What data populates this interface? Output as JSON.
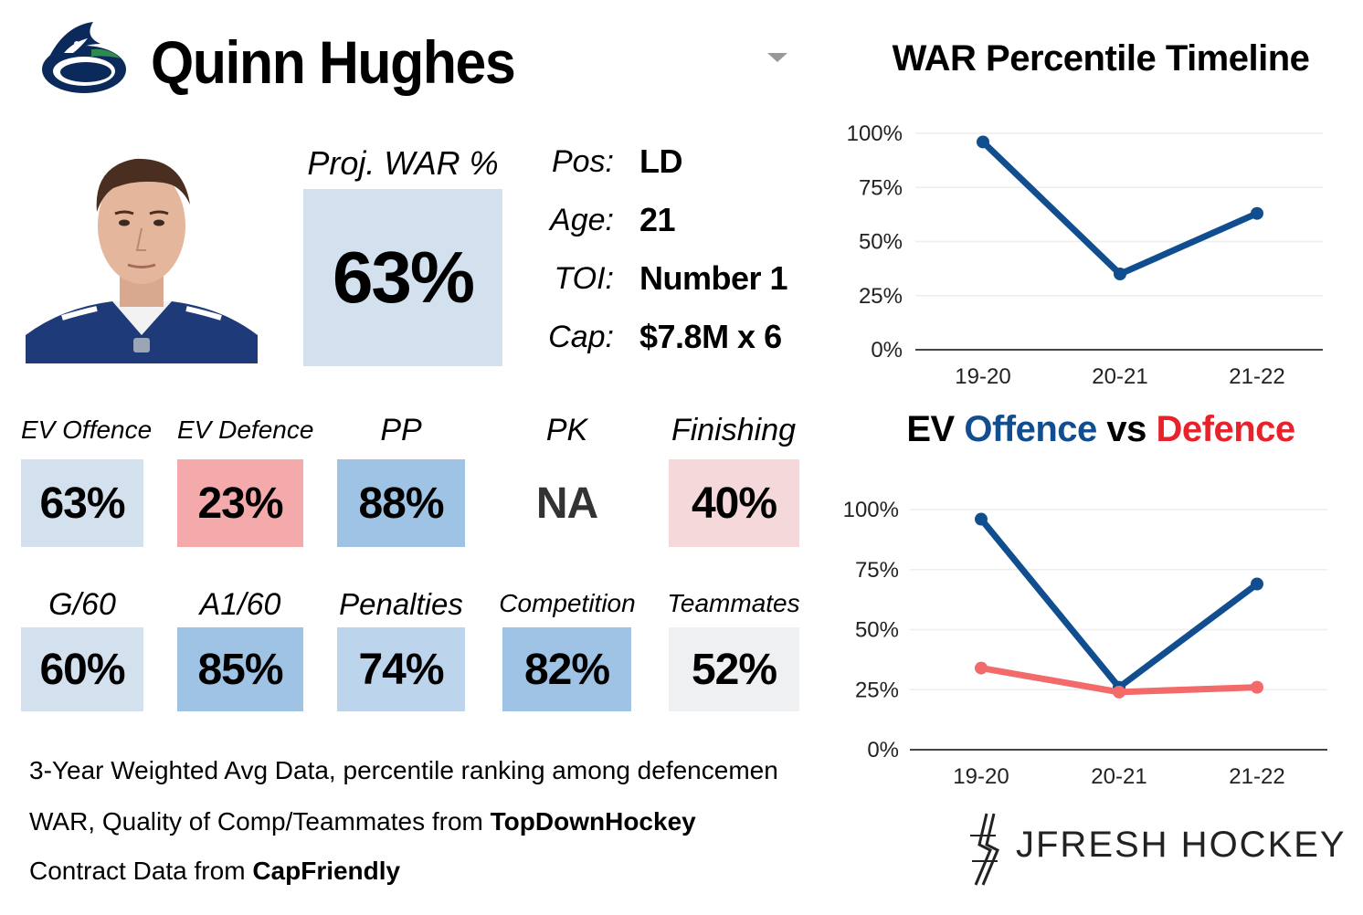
{
  "player": {
    "name": "Quinn Hughes",
    "team_logo_icon": "canucks-orca-logo-icon",
    "headshot": "player-headshot"
  },
  "projection": {
    "label": "Proj. WAR %",
    "value": "63%",
    "color": "#d3e1ee"
  },
  "info": [
    {
      "label": "Pos:",
      "value": "LD"
    },
    {
      "label": "Age:",
      "value": "21"
    },
    {
      "label": "TOI:",
      "value": "Number 1"
    },
    {
      "label": "Cap:",
      "value": "$7.8M x 6"
    }
  ],
  "stats_row1": [
    {
      "label": "EV Offence",
      "value": "63%",
      "color": "#d3e1ee"
    },
    {
      "label": "EV Defence",
      "value": "23%",
      "color": "#f4aaaa"
    },
    {
      "label": "PP",
      "value": "88%",
      "color": "#9ec3e4"
    },
    {
      "label": "PK",
      "value": "NA",
      "color": "#ffffff"
    },
    {
      "label": "Finishing",
      "value": "40%",
      "color": "#f4d8da"
    }
  ],
  "stats_row2": [
    {
      "label": "G/60",
      "value": "60%",
      "color": "#d3e1ee"
    },
    {
      "label": "A1/60",
      "value": "85%",
      "color": "#9ec3e4"
    },
    {
      "label": "Penalties",
      "value": "74%",
      "color": "#bcd5ec"
    },
    {
      "label": "Competition",
      "value": "82%",
      "color": "#9ec3e4"
    },
    {
      "label": "Teammates",
      "value": "52%",
      "color": "#eef0f2"
    }
  ],
  "footnotes": {
    "line1": "3-Year Weighted Avg Data, percentile ranking among defencemen",
    "line2_prefix": "WAR, Quality of Comp/Teammates from ",
    "line2_source": "TopDownHockey",
    "line3_prefix": "Contract Data from ",
    "line3_source": "CapFriendly"
  },
  "brand": {
    "text": "JFRESH HOCKEY",
    "icon": "jfresh-stick-logo-icon"
  },
  "colors": {
    "offence": "#114e8f",
    "defence": "#f26a6a",
    "title_blue": "#114e8f",
    "title_red": "#e8222a"
  },
  "chart_data": [
    {
      "type": "line",
      "title": "WAR Percentile Timeline",
      "categories": [
        "19-20",
        "20-21",
        "21-22"
      ],
      "ylim": [
        0,
        100
      ],
      "yticks": [
        "0%",
        "25%",
        "50%",
        "75%",
        "100%"
      ],
      "grid": true,
      "series": [
        {
          "values": [
            96,
            35,
            63
          ],
          "color": "#114e8f"
        }
      ]
    },
    {
      "type": "line",
      "title_parts": [
        "EV ",
        "Offence",
        " vs ",
        "Defence"
      ],
      "categories": [
        "19-20",
        "20-21",
        "21-22"
      ],
      "ylim": [
        0,
        100
      ],
      "yticks": [
        "0%",
        "25%",
        "50%",
        "75%",
        "100%"
      ],
      "grid": true,
      "series": [
        {
          "values": [
            96,
            26,
            69
          ],
          "color": "#114e8f"
        },
        {
          "values": [
            34,
            24,
            26
          ],
          "color": "#f26a6a"
        }
      ]
    }
  ]
}
